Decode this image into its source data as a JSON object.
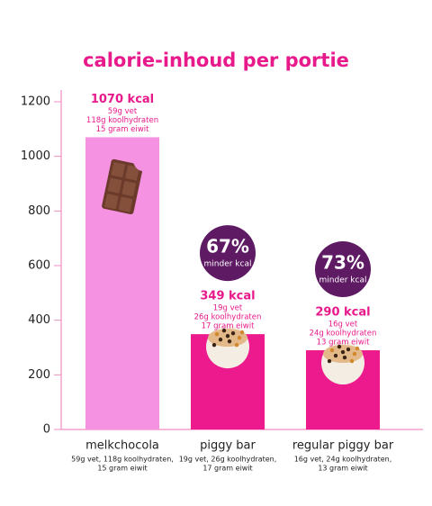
{
  "chart_data": {
    "type": "bar",
    "title": "calorie-inhoud per portie",
    "categories": [
      "melkchocola",
      "piggy bar",
      "regular piggy bar"
    ],
    "values": [
      1070,
      349,
      290
    ],
    "value_labels": [
      "1070 kcal",
      "349 kcal",
      "290 kcal"
    ],
    "colors": [
      "#f592e2",
      "#ec1a8c",
      "#ec1a8c"
    ],
    "details": [
      [
        "59g vet",
        "118g koolhydraten",
        "15 gram eiwit"
      ],
      [
        "19g vet",
        "26g koolhydraten",
        "17 gram eiwit"
      ],
      [
        "16g vet",
        "24g koolhydraten",
        "13 gram eiwit"
      ]
    ],
    "category_subtitles": [
      [
        "59g vet, 118g koolhydraten,",
        "15 gram eiwit"
      ],
      [
        "19g vet, 26g koolhydraten,",
        "17 gram eiwit"
      ],
      [
        "16g vet, 24g koolhydraten,",
        "13 gram eiwit"
      ]
    ],
    "reductions": {
      "values": [
        null,
        67,
        73
      ],
      "value_labels": [
        null,
        "67%",
        "73%"
      ],
      "text": "minder kcal",
      "color": "#5e1a63"
    },
    "ylim": [
      0,
      1200
    ],
    "yticks": [
      0,
      200,
      400,
      600,
      800,
      1000,
      1200
    ]
  }
}
